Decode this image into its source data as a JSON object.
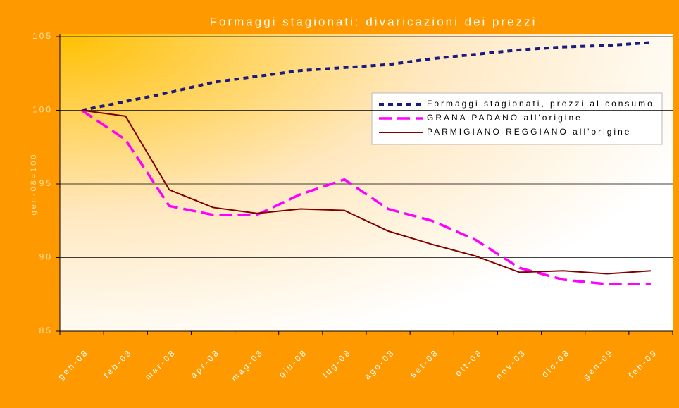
{
  "chart_data": {
    "type": "line",
    "title": "Formaggi stagionati: divaricazioni dei prezzi",
    "y_label": "gen-08=100",
    "categories": [
      "gen-08",
      "feb-08",
      "mar-08",
      "apr-08",
      "mag-08",
      "giu-08",
      "lug-08",
      "ago-08",
      "set-08",
      "ott-08",
      "nov-08",
      "dic-08",
      "gen-09",
      "feb-09"
    ],
    "series": [
      {
        "name": "Formaggi stagionati, prezzi al consumo",
        "color": "#1a1a80",
        "dash": "short",
        "values": [
          100,
          100.6,
          101.2,
          101.9,
          102.3,
          102.7,
          102.9,
          103.1,
          103.5,
          103.8,
          104.1,
          104.3,
          104.4,
          104.6
        ]
      },
      {
        "name": "GRANA PADANO all'origine",
        "color": "#ff00ff",
        "dash": "long",
        "values": [
          100,
          98.0,
          93.5,
          92.9,
          92.9,
          94.3,
          95.3,
          93.3,
          92.5,
          91.2,
          89.3,
          88.5,
          88.2,
          88.2
        ]
      },
      {
        "name": "PARMIGIANO REGGIANO all'origine",
        "color": "#800000",
        "dash": "solid",
        "values": [
          100,
          99.6,
          94.6,
          93.4,
          93.0,
          93.3,
          93.2,
          91.8,
          90.9,
          90.1,
          89.0,
          89.1,
          88.9,
          89.1
        ]
      }
    ],
    "ylim": [
      85,
      105
    ],
    "yticks": [
      85,
      90,
      95,
      100,
      105
    ],
    "grid": true,
    "legend": "right"
  }
}
